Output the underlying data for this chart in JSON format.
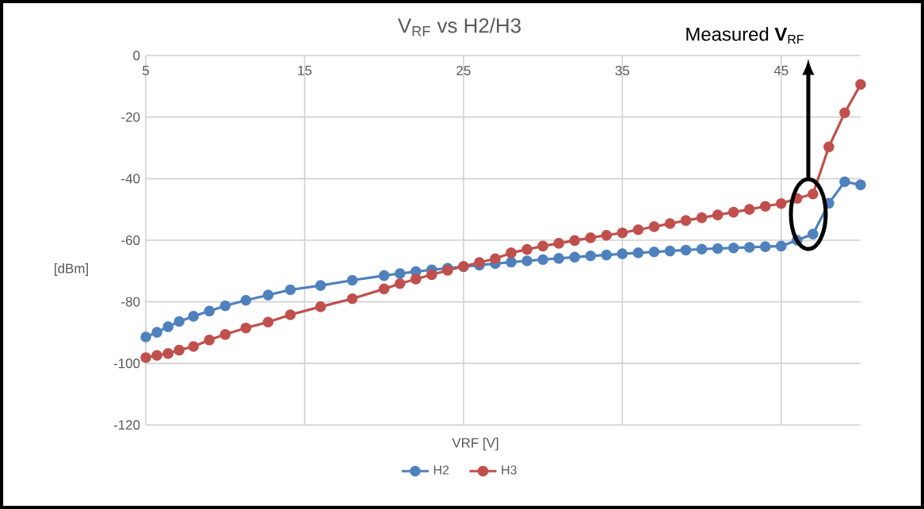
{
  "chart_data": {
    "type": "line",
    "title": "V$_{RF}$ vs H2/H3",
    "xlabel": "VRF [V]",
    "ylabel": "[dBm]",
    "x": [
      5,
      5.7,
      6.4,
      7.1,
      8,
      9,
      10,
      11.3,
      12.7,
      14.1,
      16,
      18,
      20,
      21,
      22,
      23,
      24,
      25,
      26,
      27,
      28,
      29,
      30,
      31,
      32,
      33,
      34,
      35,
      36,
      37,
      38,
      39,
      40,
      41,
      42,
      43,
      44,
      45,
      46,
      47,
      48,
      49,
      50
    ],
    "series": [
      {
        "name": "H2",
        "color": "#4f81bd",
        "values": [
          -91.4,
          -89.9,
          -88.1,
          -86.4,
          -84.7,
          -83,
          -81.3,
          -79.5,
          -77.8,
          -76.1,
          -74.7,
          -73,
          -71.5,
          -70.8,
          -70.2,
          -69.6,
          -69.1,
          -68.6,
          -68.1,
          -67.6,
          -67.1,
          -66.7,
          -66.3,
          -65.9,
          -65.5,
          -65.1,
          -64.8,
          -64.4,
          -64.1,
          -63.8,
          -63.5,
          -63.2,
          -62.9,
          -62.7,
          -62.5,
          -62.3,
          -62.1,
          -61.9,
          -60,
          -58,
          -48,
          -41,
          -42
        ]
      },
      {
        "name": "H3",
        "color": "#c0504d",
        "values": [
          -98.1,
          -97.4,
          -96.8,
          -95.7,
          -94.5,
          -92.4,
          -90.6,
          -88.5,
          -86.6,
          -84.2,
          -81.6,
          -79,
          -75.8,
          -74.1,
          -72.6,
          -71.2,
          -69.8,
          -68.5,
          -67.2,
          -66,
          -64.1,
          -63,
          -61.9,
          -61,
          -60.1,
          -59.2,
          -58.4,
          -57.6,
          -56.6,
          -55.6,
          -54.6,
          -53.6,
          -52.7,
          -51.8,
          -50.9,
          -50,
          -49,
          -48.1,
          -46.4,
          -45,
          -29.7,
          -18.6,
          -9.4
        ]
      }
    ],
    "xlim": [
      5,
      50
    ],
    "xticks": [
      5,
      15,
      25,
      35,
      45
    ],
    "ylim": [
      -120,
      0
    ],
    "yticks": [
      -120,
      -100,
      -80,
      -60,
      -40,
      -20,
      0
    ],
    "annotations": [
      "Measured **V**$_{RF}$"
    ],
    "grid": true,
    "legend": "bottom",
    "marker": "circle",
    "line_style": "solid"
  }
}
